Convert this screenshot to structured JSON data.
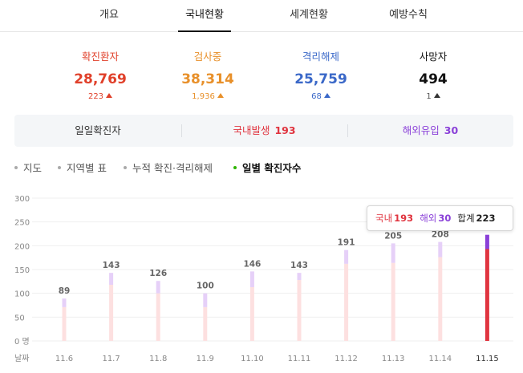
{
  "tabs": [
    {
      "label": "개요",
      "active": false
    },
    {
      "label": "국내현황",
      "active": true
    },
    {
      "label": "세계현황",
      "active": false
    },
    {
      "label": "예방수칙",
      "active": false
    }
  ],
  "stats": [
    {
      "label": "확진환자",
      "value": "28,769",
      "delta": "223",
      "color": "#e0402a",
      "deltaColor": "#e0402a"
    },
    {
      "label": "검사중",
      "value": "38,314",
      "delta": "1,936",
      "color": "#e8902a",
      "deltaColor": "#e8902a"
    },
    {
      "label": "격리해제",
      "value": "25,759",
      "delta": "68",
      "color": "#3a68c8",
      "deltaColor": "#3a68c8"
    },
    {
      "label": "사망자",
      "value": "494",
      "delta": "1",
      "color": "#111111",
      "deltaColor": "#333333"
    }
  ],
  "summary": {
    "daily_label": "일일확진자",
    "domestic_label": "국내발생",
    "domestic_value": "193",
    "overseas_label": "해외유입",
    "overseas_value": "30"
  },
  "chart_menu": [
    {
      "label": "지도",
      "active": false
    },
    {
      "label": "지역별 표",
      "active": false
    },
    {
      "label": "누적 확진·격리해제",
      "active": false
    },
    {
      "label": "일별 확진자수",
      "active": true
    }
  ],
  "colors": {
    "domestic": "#e0343f",
    "overseas": "#8a40d8",
    "domestic_light": "#fde0e0",
    "overseas_light": "#e6d0f8",
    "domestic_text": "#e0343f",
    "overseas_text": "#8a40d8"
  },
  "tooltip": {
    "domestic_label": "국내",
    "domestic_value": "193",
    "overseas_label": "해외",
    "overseas_value": "30",
    "total_label": "합계",
    "total_value": "223"
  },
  "chart_data": {
    "type": "bar",
    "stacked": true,
    "categories": [
      "11.6",
      "11.7",
      "11.8",
      "11.9",
      "11.10",
      "11.11",
      "11.12",
      "11.13",
      "11.14",
      "11.15"
    ],
    "series": [
      {
        "name": "국내",
        "values": [
          71,
          118,
          100,
          71,
          113,
          128,
          162,
          164,
          176,
          193
        ]
      },
      {
        "name": "해외",
        "values": [
          18,
          25,
          26,
          29,
          33,
          15,
          29,
          41,
          32,
          30
        ]
      }
    ],
    "totals": [
      89,
      143,
      126,
      100,
      146,
      143,
      191,
      205,
      208,
      223
    ],
    "x_axis_title": "날짜",
    "y_unit": "명",
    "yticks": [
      0,
      50,
      100,
      150,
      200,
      250,
      300
    ],
    "ylim": [
      0,
      300
    ],
    "highlighted_index": 9
  }
}
